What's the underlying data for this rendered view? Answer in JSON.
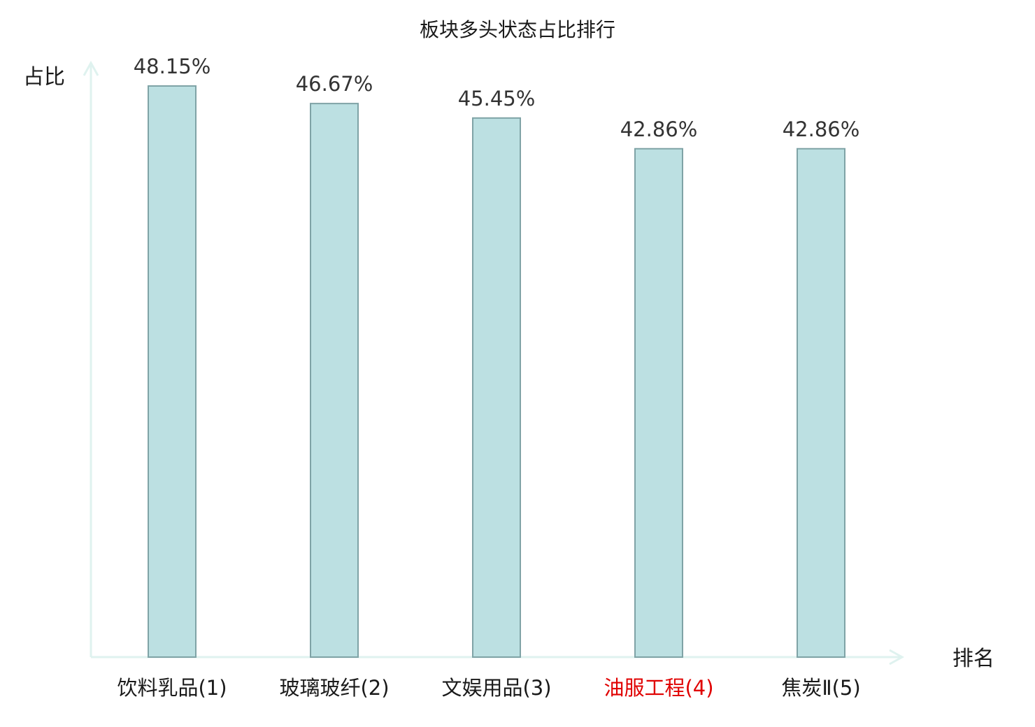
{
  "chart_data": {
    "type": "bar",
    "title": "板块多头状态占比排行",
    "ylabel": "占比",
    "xlabel": "排名",
    "categories": [
      "饮料乳品(1)",
      "玻璃玻纤(2)",
      "文娱用品(3)",
      "油服工程(4)",
      "焦炭Ⅱ(5)"
    ],
    "values": [
      48.15,
      46.67,
      45.45,
      42.86,
      42.86
    ],
    "value_labels": [
      "48.15%",
      "46.67%",
      "45.45%",
      "42.86%",
      "42.86%"
    ],
    "category_colors": [
      "#1a1a1a",
      "#1a1a1a",
      "#1a1a1a",
      "#e00000",
      "#1a1a1a"
    ],
    "ylim": [
      0,
      48.15
    ],
    "grid": false,
    "legend": "none",
    "bar_color": "#bce0e2",
    "bar_border_color": "#7fa3a6",
    "axis_color": "#dff2ef"
  }
}
